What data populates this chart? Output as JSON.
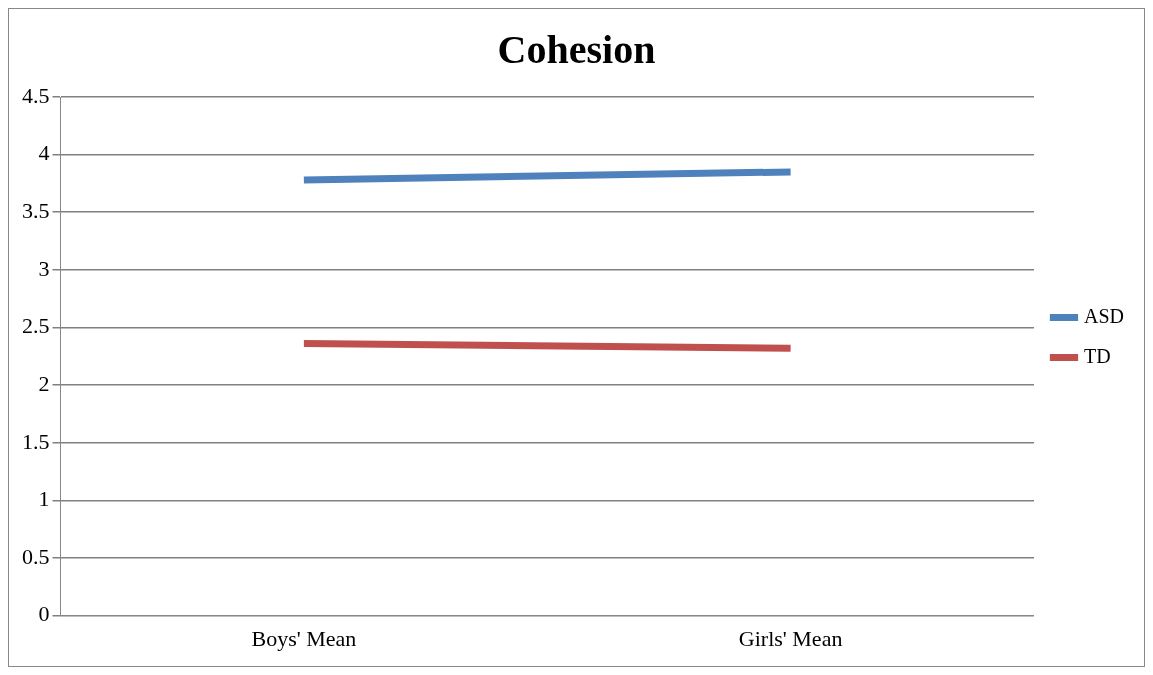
{
  "chart_data": {
    "type": "line",
    "title": "Cohesion",
    "categories": [
      "Boys' Mean",
      "Girls' Mean"
    ],
    "series": [
      {
        "name": "ASD",
        "color": "#4f81bd",
        "values": [
          3.78,
          3.85
        ]
      },
      {
        "name": "TD",
        "color": "#c0504d",
        "values": [
          2.36,
          2.32
        ]
      }
    ],
    "ylim": [
      0,
      4.5
    ],
    "yticks": [
      0,
      0.5,
      1,
      1.5,
      2,
      2.5,
      3,
      3.5,
      4,
      4.5
    ],
    "grid": "y",
    "legend": "right",
    "marker": "none"
  }
}
